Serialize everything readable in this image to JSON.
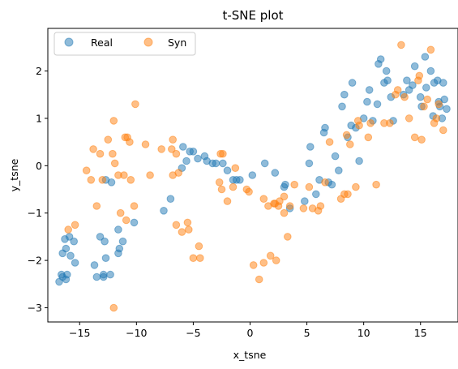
{
  "chart_data": {
    "type": "scatter",
    "title": "t-SNE plot",
    "xlabel": "x_tsne",
    "ylabel": "y_tsne",
    "xlim": [
      -17.8,
      18.3
    ],
    "ylim": [
      -3.3,
      2.9
    ],
    "xticks": [
      -15,
      -10,
      -5,
      0,
      5,
      10,
      15
    ],
    "yticks": [
      -3,
      -2,
      -1,
      0,
      1,
      2
    ],
    "xtick_labels": [
      "−15",
      "−10",
      "−5",
      "0",
      "5",
      "10",
      "15"
    ],
    "ytick_labels": [
      "−3",
      "−2",
      "−1",
      "0",
      "1",
      "2"
    ],
    "grid": false,
    "legend": {
      "placement": "top-left",
      "ncol": 2
    },
    "series": [
      {
        "name": "Real",
        "color": "#1f77b4",
        "points": [
          [
            -16.8,
            -2.45
          ],
          [
            -16.5,
            -2.35
          ],
          [
            -16.6,
            -2.3
          ],
          [
            -16.2,
            -2.4
          ],
          [
            -16.1,
            -2.3
          ],
          [
            -16.5,
            -1.85
          ],
          [
            -16.2,
            -1.75
          ],
          [
            -15.8,
            -1.9
          ],
          [
            -15.4,
            -2.05
          ],
          [
            -15.5,
            -1.6
          ],
          [
            -15.9,
            -1.5
          ],
          [
            -16.3,
            -1.55
          ],
          [
            -13.7,
            -2.1
          ],
          [
            -13.5,
            -2.35
          ],
          [
            -12.9,
            -2.35
          ],
          [
            -12.9,
            -2.3
          ],
          [
            -12.3,
            -2.3
          ],
          [
            -12.7,
            -1.95
          ],
          [
            -12.8,
            -1.6
          ],
          [
            -13.2,
            -1.5
          ],
          [
            -11.6,
            -1.85
          ],
          [
            -11.5,
            -1.75
          ],
          [
            -11.2,
            -1.6
          ],
          [
            -11.6,
            -1.35
          ],
          [
            -10.2,
            -1.2
          ],
          [
            -12.7,
            -0.3
          ],
          [
            -12.2,
            -0.35
          ],
          [
            -7.6,
            -0.95
          ],
          [
            -7.0,
            -0.7
          ],
          [
            -6.0,
            -0.05
          ],
          [
            -5.6,
            0.1
          ],
          [
            -5.3,
            0.3
          ],
          [
            -5.9,
            0.4
          ],
          [
            -5.0,
            0.3
          ],
          [
            -4.6,
            0.15
          ],
          [
            -4.0,
            0.2
          ],
          [
            -3.8,
            0.1
          ],
          [
            -3.3,
            0.05
          ],
          [
            -3.0,
            0.05
          ],
          [
            -2.4,
            0.05
          ],
          [
            -2.0,
            -0.1
          ],
          [
            -1.5,
            -0.3
          ],
          [
            -1.2,
            -0.3
          ],
          [
            -0.9,
            -0.3
          ],
          [
            0.2,
            -0.2
          ],
          [
            1.3,
            0.05
          ],
          [
            2.2,
            -0.15
          ],
          [
            3.0,
            -0.45
          ],
          [
            3.1,
            -0.4
          ],
          [
            3.5,
            -0.9
          ],
          [
            4.8,
            -0.75
          ],
          [
            5.2,
            0.05
          ],
          [
            5.3,
            0.4
          ],
          [
            5.8,
            -0.6
          ],
          [
            6.1,
            -0.3
          ],
          [
            6.5,
            0.7
          ],
          [
            6.6,
            0.8
          ],
          [
            6.9,
            -0.35
          ],
          [
            7.2,
            -0.4
          ],
          [
            7.5,
            0.2
          ],
          [
            7.8,
            -0.1
          ],
          [
            8.1,
            1.25
          ],
          [
            8.3,
            1.5
          ],
          [
            8.6,
            0.6
          ],
          [
            8.9,
            0.85
          ],
          [
            9.0,
            1.75
          ],
          [
            9.3,
            0.8
          ],
          [
            9.6,
            0.1
          ],
          [
            10.0,
            1.0
          ],
          [
            10.3,
            1.35
          ],
          [
            10.5,
            1.6
          ],
          [
            10.8,
            0.95
          ],
          [
            11.2,
            1.3
          ],
          [
            11.3,
            2.15
          ],
          [
            11.5,
            2.25
          ],
          [
            11.8,
            1.75
          ],
          [
            12.0,
            2.0
          ],
          [
            12.1,
            1.8
          ],
          [
            12.4,
            1.45
          ],
          [
            12.6,
            0.95
          ],
          [
            13.5,
            1.5
          ],
          [
            13.8,
            1.8
          ],
          [
            14.0,
            1.6
          ],
          [
            14.3,
            1.7
          ],
          [
            14.5,
            2.1
          ],
          [
            15.0,
            1.45
          ],
          [
            15.1,
            1.25
          ],
          [
            15.4,
            2.3
          ],
          [
            15.5,
            1.65
          ],
          [
            15.9,
            2.0
          ],
          [
            16.1,
            1.05
          ],
          [
            16.2,
            1.75
          ],
          [
            16.5,
            1.8
          ],
          [
            16.6,
            1.35
          ],
          [
            16.7,
            1.25
          ],
          [
            16.9,
            1.0
          ],
          [
            17.1,
            1.4
          ],
          [
            17.0,
            1.75
          ],
          [
            17.3,
            1.2
          ]
        ]
      },
      {
        "name": "Syn",
        "color": "#ff7f0e",
        "points": [
          [
            -16.0,
            -1.35
          ],
          [
            -15.4,
            -1.25
          ],
          [
            -14.4,
            -0.1
          ],
          [
            -14.0,
            -0.3
          ],
          [
            -13.8,
            0.35
          ],
          [
            -13.2,
            0.25
          ],
          [
            -13.5,
            -0.85
          ],
          [
            -13.0,
            -0.3
          ],
          [
            -12.5,
            0.55
          ],
          [
            -12.0,
            0.95
          ],
          [
            -12.1,
            0.25
          ],
          [
            -11.9,
            0.05
          ],
          [
            -11.6,
            -0.2
          ],
          [
            -11.0,
            0.6
          ],
          [
            -10.8,
            0.6
          ],
          [
            -10.6,
            0.5
          ],
          [
            -11.1,
            -0.2
          ],
          [
            -10.5,
            -0.3
          ],
          [
            -11.4,
            -1.0
          ],
          [
            -10.9,
            -1.15
          ],
          [
            -10.2,
            -0.85
          ],
          [
            -12.0,
            -3.0
          ],
          [
            -10.1,
            1.3
          ],
          [
            -9.2,
            0.45
          ],
          [
            -8.8,
            -0.2
          ],
          [
            -7.8,
            0.35
          ],
          [
            -6.9,
            0.35
          ],
          [
            -6.8,
            0.55
          ],
          [
            -6.8,
            -0.2
          ],
          [
            -6.5,
            0.25
          ],
          [
            -6.3,
            -0.15
          ],
          [
            -6.5,
            -1.25
          ],
          [
            -6.0,
            -1.4
          ],
          [
            -5.5,
            -1.2
          ],
          [
            -5.4,
            -1.35
          ],
          [
            -5.0,
            -1.95
          ],
          [
            -4.5,
            -1.7
          ],
          [
            -4.4,
            -1.95
          ],
          [
            -2.6,
            0.25
          ],
          [
            -2.4,
            0.25
          ],
          [
            -2.7,
            -0.35
          ],
          [
            -2.5,
            -0.5
          ],
          [
            -2.0,
            -0.75
          ],
          [
            -1.3,
            -0.05
          ],
          [
            -1.5,
            -0.45
          ],
          [
            -0.3,
            -0.5
          ],
          [
            -0.1,
            -0.55
          ],
          [
            0.3,
            -2.1
          ],
          [
            0.8,
            -2.4
          ],
          [
            1.2,
            -2.05
          ],
          [
            1.2,
            -0.7
          ],
          [
            1.6,
            -0.85
          ],
          [
            1.8,
            -1.9
          ],
          [
            2.1,
            -0.8
          ],
          [
            2.2,
            -0.8
          ],
          [
            2.3,
            -2.0
          ],
          [
            2.5,
            -0.85
          ],
          [
            2.6,
            -0.75
          ],
          [
            3.0,
            -0.65
          ],
          [
            3.0,
            -1.0
          ],
          [
            3.3,
            -1.5
          ],
          [
            3.5,
            -0.85
          ],
          [
            3.9,
            -0.4
          ],
          [
            4.7,
            -0.9
          ],
          [
            5.2,
            -0.45
          ],
          [
            5.5,
            -0.9
          ],
          [
            6.0,
            -0.95
          ],
          [
            6.2,
            -0.85
          ],
          [
            6.6,
            -0.35
          ],
          [
            7.0,
            0.5
          ],
          [
            8.0,
            -0.7
          ],
          [
            8.3,
            -0.6
          ],
          [
            8.6,
            -0.6
          ],
          [
            8.5,
            0.65
          ],
          [
            8.8,
            0.45
          ],
          [
            9.3,
            -0.45
          ],
          [
            9.5,
            0.95
          ],
          [
            9.6,
            0.85
          ],
          [
            10.4,
            0.6
          ],
          [
            10.6,
            0.9
          ],
          [
            11.1,
            -0.4
          ],
          [
            11.8,
            0.9
          ],
          [
            12.3,
            0.9
          ],
          [
            12.8,
            1.5
          ],
          [
            13.0,
            1.6
          ],
          [
            13.3,
            2.55
          ],
          [
            13.6,
            1.45
          ],
          [
            14.0,
            1.0
          ],
          [
            14.5,
            0.6
          ],
          [
            14.8,
            1.8
          ],
          [
            14.9,
            1.9
          ],
          [
            15.1,
            0.55
          ],
          [
            15.3,
            1.25
          ],
          [
            15.6,
            1.4
          ],
          [
            15.9,
            2.45
          ],
          [
            16.2,
            0.9
          ],
          [
            16.4,
            1.0
          ],
          [
            16.6,
            1.3
          ],
          [
            17.0,
            0.75
          ]
        ]
      }
    ]
  }
}
